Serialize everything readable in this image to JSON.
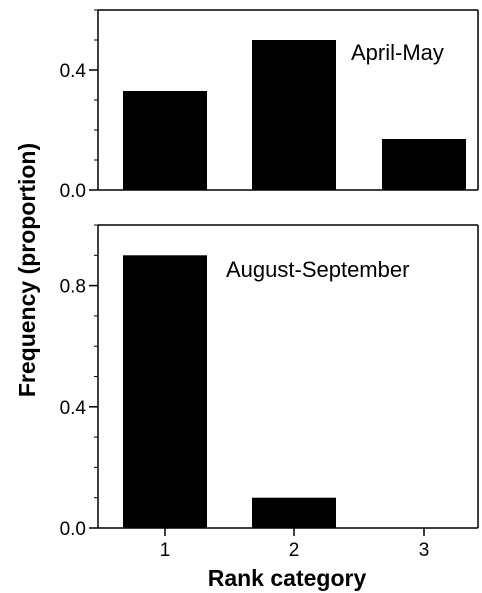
{
  "chart_data": {
    "type": "bar",
    "xlabel": "Rank category",
    "ylabel": "Frequency (proportion)",
    "categories": [
      "1",
      "2",
      "3"
    ],
    "panels": [
      {
        "label": "April-May",
        "ylim": [
          0,
          0.6
        ],
        "yticks": [
          "0.0",
          "0.4"
        ],
        "yticks_values": [
          0,
          0.4
        ],
        "values": [
          0.33,
          0.5,
          0.17
        ]
      },
      {
        "label": "August-September",
        "ylim": [
          0,
          1.0
        ],
        "yticks": [
          "0.0",
          "0.4",
          "0.8"
        ],
        "yticks_values": [
          0,
          0.4,
          0.8
        ],
        "values": [
          0.9,
          0.1,
          0.0
        ]
      }
    ],
    "bar_color": "#000000"
  }
}
